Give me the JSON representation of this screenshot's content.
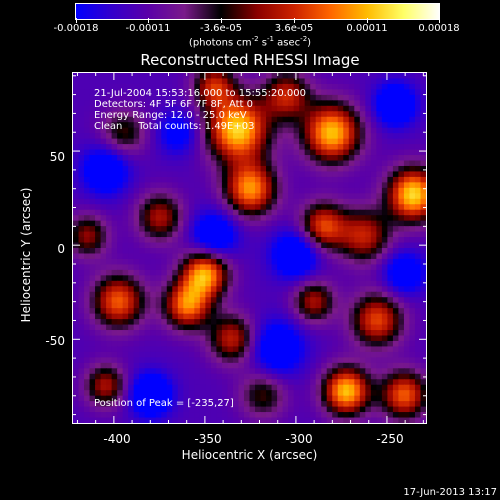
{
  "colorbar": {
    "ticks": [
      "-0.00018",
      "-0.00011",
      "-3.6e-05",
      "3.6e-05",
      "0.00011",
      "0.00018"
    ],
    "units_prefix": "(photons cm",
    "units_exp1": "-2",
    "units_mid1": " s",
    "units_exp2": "-1",
    "units_mid2": " asec",
    "units_exp3": "-2",
    "units_suffix": ")",
    "palette": [
      "#0000ff",
      "#3300cc",
      "#5a00a8",
      "#7a1a8a",
      "#000000",
      "#8b0000",
      "#cc2200",
      "#ff6600",
      "#ffbb00",
      "#ffff66",
      "#ffffff"
    ]
  },
  "plot": {
    "title": "Reconstructed RHESSI Image",
    "info": [
      "21-Jul-2004 15:53:16.000 to 15:55:20.000",
      "Detectors: 4F 5F 6F 7F 8F, Att 0",
      "Energy Range: 12.0 - 25.0 keV",
      "Clean     Total counts: 1.49E+03"
    ],
    "peak": "Position of Peak = [-235,27]",
    "xlabel": "Heliocentric X (arcsec)",
    "ylabel": "Heliocentric Y (arcsec)",
    "xticks": [
      "-400",
      "-350",
      "-300",
      "-250"
    ],
    "yticks": [
      "50",
      "0",
      "-50"
    ]
  },
  "chart_data": {
    "type": "heatmap",
    "title": "Reconstructed RHESSI Image",
    "xlabel": "Heliocentric X (arcsec)",
    "ylabel": "Heliocentric Y (arcsec)",
    "xlim": [
      -423,
      -228
    ],
    "ylim": [
      -95,
      92
    ],
    "colorbar_range": [
      -0.00018,
      0.00018
    ],
    "peak_position": [
      -235,
      27
    ],
    "blobs": [
      {
        "x": -332,
        "y": 62,
        "amplitude": 1.0,
        "sigma": 12
      },
      {
        "x": -280,
        "y": 60,
        "amplitude": 0.95,
        "sigma": 11
      },
      {
        "x": -235,
        "y": 27,
        "amplitude": 1.0,
        "sigma": 10
      },
      {
        "x": -325,
        "y": 30,
        "amplitude": 0.85,
        "sigma": 10
      },
      {
        "x": -350,
        "y": -15,
        "amplitude": 0.9,
        "sigma": 9
      },
      {
        "x": -262,
        "y": 5,
        "amplitude": 0.6,
        "sigma": 10
      },
      {
        "x": -285,
        "y": 10,
        "amplitude": 0.7,
        "sigma": 9
      },
      {
        "x": -398,
        "y": -30,
        "amplitude": 0.75,
        "sigma": 10
      },
      {
        "x": -360,
        "y": -32,
        "amplitude": 0.8,
        "sigma": 9
      },
      {
        "x": -335,
        "y": -50,
        "amplitude": 0.6,
        "sigma": 9
      },
      {
        "x": -375,
        "y": 15,
        "amplitude": 0.55,
        "sigma": 9
      },
      {
        "x": -255,
        "y": -40,
        "amplitude": 0.7,
        "sigma": 10
      },
      {
        "x": -272,
        "y": -78,
        "amplitude": 0.95,
        "sigma": 9
      },
      {
        "x": -240,
        "y": -80,
        "amplitude": 0.75,
        "sigma": 9
      },
      {
        "x": -405,
        "y": -75,
        "amplitude": 0.55,
        "sigma": 8
      },
      {
        "x": -305,
        "y": 80,
        "amplitude": 0.6,
        "sigma": 9
      },
      {
        "x": -395,
        "y": 60,
        "amplitude": 0.4,
        "sigma": 9
      },
      {
        "x": -345,
        "y": 85,
        "amplitude": 0.6,
        "sigma": 8
      },
      {
        "x": -290,
        "y": -30,
        "amplitude": 0.55,
        "sigma": 8
      },
      {
        "x": -415,
        "y": 5,
        "amplitude": 0.5,
        "sigma": 8
      },
      {
        "x": -318,
        "y": -80,
        "amplitude": 0.4,
        "sigma": 9
      },
      {
        "x": -380,
        "y": -80,
        "amplitude": -0.6,
        "sigma": 8
      },
      {
        "x": -300,
        "y": -5,
        "amplitude": -0.55,
        "sigma": 9
      },
      {
        "x": -345,
        "y": 5,
        "amplitude": -0.5,
        "sigma": 9
      },
      {
        "x": -245,
        "y": 75,
        "amplitude": -0.55,
        "sigma": 8
      },
      {
        "x": -405,
        "y": 40,
        "amplitude": -0.5,
        "sigma": 9
      },
      {
        "x": -310,
        "y": -55,
        "amplitude": -0.5,
        "sigma": 10
      },
      {
        "x": -240,
        "y": -15,
        "amplitude": -0.45,
        "sigma": 8
      },
      {
        "x": -365,
        "y": 60,
        "amplitude": -0.35,
        "sigma": 8
      }
    ]
  },
  "footer": {
    "timestamp": "17-Jun-2013 13:17"
  }
}
